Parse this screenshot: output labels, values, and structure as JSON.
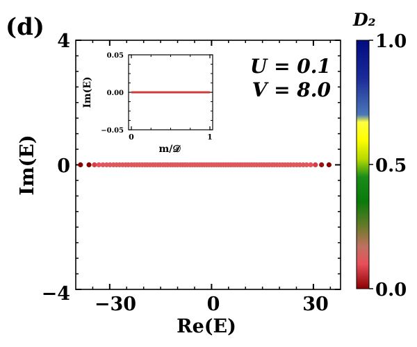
{
  "panel_label": "(d)",
  "annotation": {
    "u_line": "U = 0.1",
    "v_line": "V = 8.0"
  },
  "colorbar": {
    "label": "D₂",
    "ticks": [
      "0.0",
      "0.5",
      "1.0"
    ],
    "stops": [
      {
        "value": 0.0,
        "color": "#8b0000"
      },
      {
        "value": 0.1,
        "color": "#e8505a"
      },
      {
        "value": 0.17,
        "color": "#c07060"
      },
      {
        "value": 0.25,
        "color": "#6a7a2a"
      },
      {
        "value": 0.35,
        "color": "#0a7a0a"
      },
      {
        "value": 0.45,
        "color": "#1a8c1a"
      },
      {
        "value": 0.52,
        "color": "#b4d800"
      },
      {
        "value": 0.6,
        "color": "#ffff00"
      },
      {
        "value": 0.67,
        "color": "#ffff40"
      },
      {
        "value": 0.7,
        "color": "#4a78b8"
      },
      {
        "value": 0.85,
        "color": "#1a2a98"
      },
      {
        "value": 1.0,
        "color": "#000c80"
      }
    ]
  },
  "chart_data": [
    {
      "type": "scatter",
      "xlabel": "Re(E)",
      "ylabel": "Im(E)",
      "xlim": [
        -40,
        38
      ],
      "ylim": [
        -4,
        4
      ],
      "xticks": [
        "−30",
        "0",
        "30"
      ],
      "yticks": [
        "−4",
        "0",
        "4"
      ],
      "points_x": [
        -38.6,
        -36.1,
        -34.5,
        -33.2,
        -32.0,
        -30.9,
        -29.9,
        -28.9,
        -28.0,
        -27.1,
        -26.2,
        -25.3,
        -24.5,
        -23.6,
        -22.8,
        -22.0,
        -21.2,
        -20.4,
        -19.6,
        -18.9,
        -18.1,
        -17.3,
        -16.6,
        -15.8,
        -15.1,
        -14.3,
        -13.6,
        -12.9,
        -12.1,
        -11.4,
        -10.7,
        -10.0,
        -9.2,
        -8.5,
        -7.8,
        -7.1,
        -6.3,
        -5.6,
        -4.9,
        -4.2,
        -3.5,
        -2.8,
        -2.1,
        -1.4,
        -0.7,
        0.0,
        0.7,
        1.4,
        2.1,
        2.8,
        3.5,
        4.2,
        4.9,
        5.6,
        6.3,
        7.0,
        7.7,
        8.4,
        9.1,
        9.8,
        10.5,
        11.2,
        11.9,
        12.6,
        13.3,
        14.1,
        14.8,
        15.5,
        16.3,
        17.0,
        17.8,
        18.5,
        19.3,
        20.1,
        20.9,
        21.7,
        22.5,
        23.3,
        24.2,
        25.1,
        26.0,
        27.0,
        28.0,
        29.2,
        30.6,
        32.4,
        34.6
      ],
      "y_value": 0,
      "point_level": [
        0.0,
        0.0,
        0.08,
        0.1,
        0.12,
        0.12,
        0.12,
        0.12,
        0.12,
        0.12,
        0.12,
        0.12,
        0.12,
        0.12,
        0.12,
        0.12,
        0.12,
        0.12,
        0.12,
        0.12,
        0.12,
        0.12,
        0.12,
        0.12,
        0.12,
        0.12,
        0.12,
        0.12,
        0.12,
        0.12,
        0.12,
        0.12,
        0.12,
        0.12,
        0.12,
        0.12,
        0.12,
        0.12,
        0.12,
        0.12,
        0.12,
        0.12,
        0.12,
        0.12,
        0.12,
        0.12,
        0.12,
        0.12,
        0.12,
        0.12,
        0.12,
        0.12,
        0.12,
        0.12,
        0.12,
        0.12,
        0.12,
        0.12,
        0.12,
        0.12,
        0.12,
        0.12,
        0.12,
        0.12,
        0.12,
        0.12,
        0.12,
        0.12,
        0.12,
        0.12,
        0.12,
        0.12,
        0.12,
        0.12,
        0.12,
        0.12,
        0.12,
        0.12,
        0.12,
        0.12,
        0.12,
        0.12,
        0.12,
        0.1,
        0.08,
        0.02,
        0.0
      ]
    },
    {
      "type": "line",
      "xlabel": "m/𝒟",
      "ylabel": "Im(E)",
      "xlim": [
        0,
        1
      ],
      "ylim": [
        -0.05,
        0.05
      ],
      "xticks": [
        "0",
        "1"
      ],
      "yticks": [
        "−0.05",
        "0.00",
        "0.05"
      ],
      "x": [
        0,
        1
      ],
      "y": [
        0.0,
        0.0
      ]
    }
  ]
}
